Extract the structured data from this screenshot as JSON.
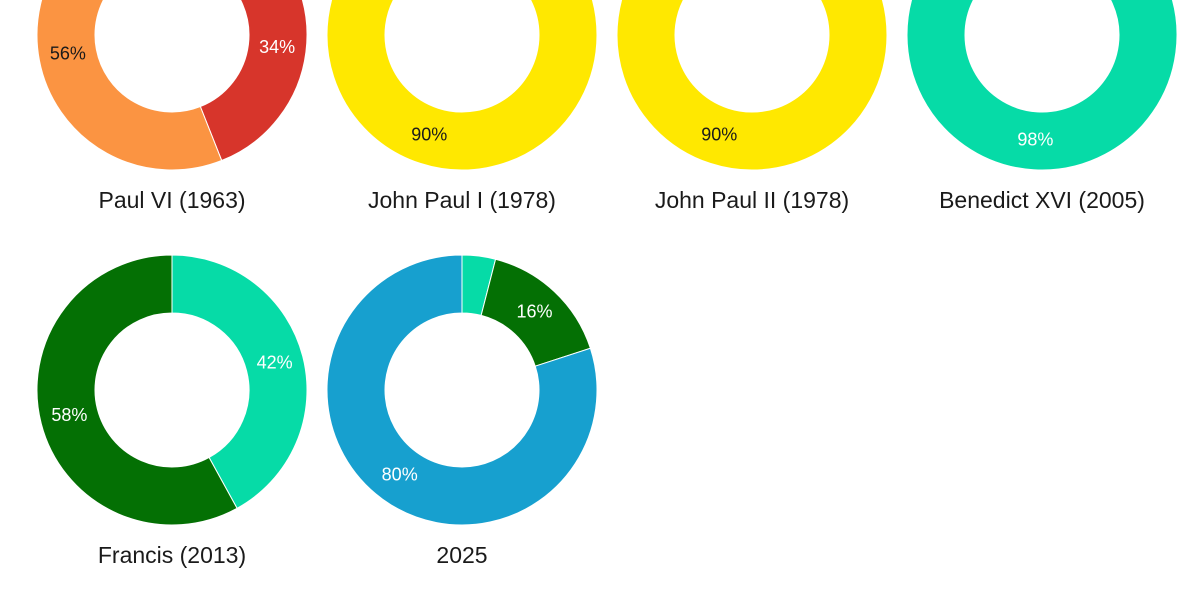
{
  "chart_data": [
    {
      "type": "donut",
      "title": "Paul VI (1963)",
      "values": [
        34,
        56
      ],
      "value_labels": [
        "34%",
        "56%"
      ],
      "colors": [
        "#d7352b",
        "#fb9442"
      ]
    },
    {
      "type": "donut",
      "title": "John Paul I (1978)",
      "values": [
        90
      ],
      "value_labels": [
        "90%"
      ],
      "colors": [
        "#ffe800"
      ]
    },
    {
      "type": "donut",
      "title": "John Paul II (1978)",
      "values": [
        90
      ],
      "value_labels": [
        "90%"
      ],
      "colors": [
        "#ffe800"
      ]
    },
    {
      "type": "donut",
      "title": "Benedict XVI (2005)",
      "values": [
        98
      ],
      "value_labels": [
        "98%"
      ],
      "colors": [
        "#06dba7"
      ]
    },
    {
      "type": "donut",
      "title": "Francis (2013)",
      "values": [
        42,
        58
      ],
      "value_labels": [
        "42%",
        "58%"
      ],
      "colors": [
        "#06dba7",
        "#047004"
      ]
    },
    {
      "type": "donut",
      "title": "2025",
      "values": [
        4,
        16,
        80
      ],
      "value_labels": [
        null,
        "16%",
        "80%"
      ],
      "colors": [
        "#06dba7",
        "#047004",
        "#17a0cf"
      ]
    }
  ]
}
